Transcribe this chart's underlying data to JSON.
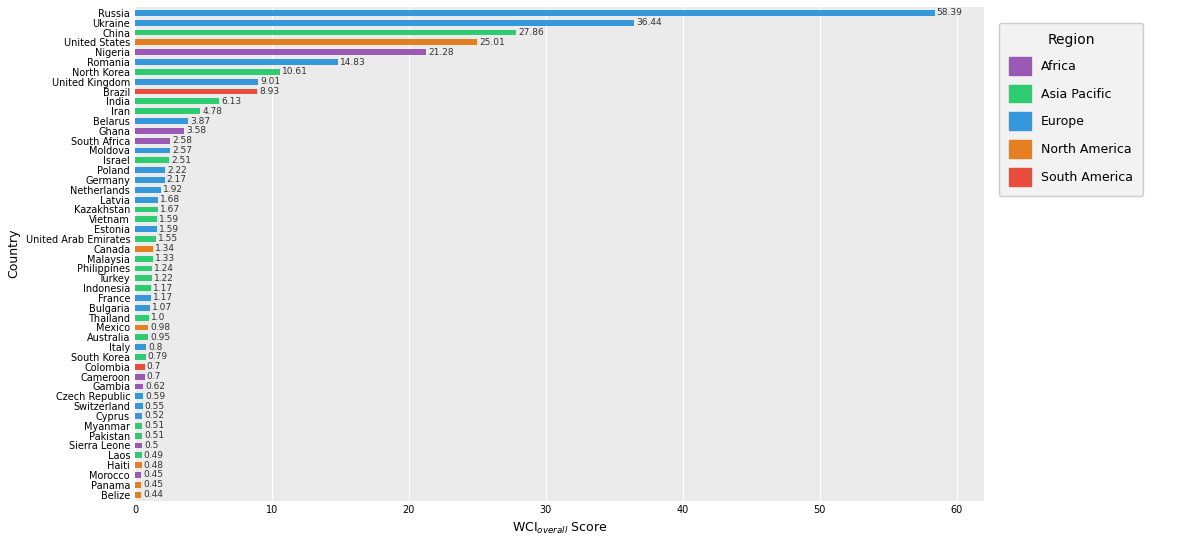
{
  "countries": [
    "Russia",
    "Ukraine",
    "China",
    "United States",
    "Nigeria",
    "Romania",
    "North Korea",
    "United Kingdom",
    "Brazil",
    "India",
    "Iran",
    "Belarus",
    "Ghana",
    "South Africa",
    "Moldova",
    "Israel",
    "Poland",
    "Germany",
    "Netherlands",
    "Latvia",
    "Kazakhstan",
    "Vietnam",
    "Estonia",
    "United Arab Emirates",
    "Canada",
    "Malaysia",
    "Philippines",
    "Turkey",
    "Indonesia",
    "France",
    "Bulgaria",
    "Thailand",
    "Mexico",
    "Australia",
    "Italy",
    "South Korea",
    "Colombia",
    "Cameroon",
    "Gambia",
    "Czech Republic",
    "Switzerland",
    "Cyprus",
    "Myanmar",
    "Pakistan",
    "Sierra Leone",
    "Laos",
    "Haiti",
    "Morocco",
    "Panama",
    "Belize"
  ],
  "values": [
    58.39,
    36.44,
    27.86,
    25.01,
    21.28,
    14.83,
    10.61,
    9.01,
    8.93,
    6.13,
    4.78,
    3.87,
    3.58,
    2.58,
    2.57,
    2.51,
    2.22,
    2.17,
    1.92,
    1.68,
    1.67,
    1.59,
    1.59,
    1.55,
    1.34,
    1.33,
    1.24,
    1.22,
    1.17,
    1.17,
    1.07,
    1.0,
    0.98,
    0.95,
    0.8,
    0.79,
    0.7,
    0.7,
    0.62,
    0.59,
    0.55,
    0.52,
    0.51,
    0.51,
    0.5,
    0.49,
    0.48,
    0.45,
    0.45,
    0.44
  ],
  "regions": [
    "Europe",
    "Europe",
    "Asia Pacific",
    "North America",
    "Africa",
    "Europe",
    "Asia Pacific",
    "Europe",
    "South America",
    "Asia Pacific",
    "Asia Pacific",
    "Europe",
    "Africa",
    "Africa",
    "Europe",
    "Asia Pacific",
    "Europe",
    "Europe",
    "Europe",
    "Europe",
    "Asia Pacific",
    "Asia Pacific",
    "Europe",
    "Asia Pacific",
    "North America",
    "Asia Pacific",
    "Asia Pacific",
    "Asia Pacific",
    "Asia Pacific",
    "Europe",
    "Europe",
    "Asia Pacific",
    "North America",
    "Asia Pacific",
    "Europe",
    "Asia Pacific",
    "South America",
    "Africa",
    "Africa",
    "Europe",
    "Europe",
    "Europe",
    "Asia Pacific",
    "Asia Pacific",
    "Africa",
    "Asia Pacific",
    "North America",
    "Africa",
    "North America",
    "North America"
  ],
  "region_colors": {
    "Africa": "#9B59B6",
    "Asia Pacific": "#2ECC71",
    "Europe": "#3498DB",
    "North America": "#E67E22",
    "South America": "#E74C3C"
  },
  "xlabel": "WCI$_{overall}$ Score",
  "ylabel": "Country",
  "legend_title": "Region",
  "bg_color": "#EBEBEB",
  "grid_color": "#FFFFFF",
  "xlim": [
    0,
    62
  ],
  "xticks": [
    0,
    10,
    20,
    30,
    40,
    50,
    60
  ],
  "bar_height": 0.6,
  "label_fontsize": 6.5,
  "tick_fontsize": 7.0,
  "axis_label_fontsize": 9,
  "legend_fontsize": 9,
  "legend_title_fontsize": 10
}
